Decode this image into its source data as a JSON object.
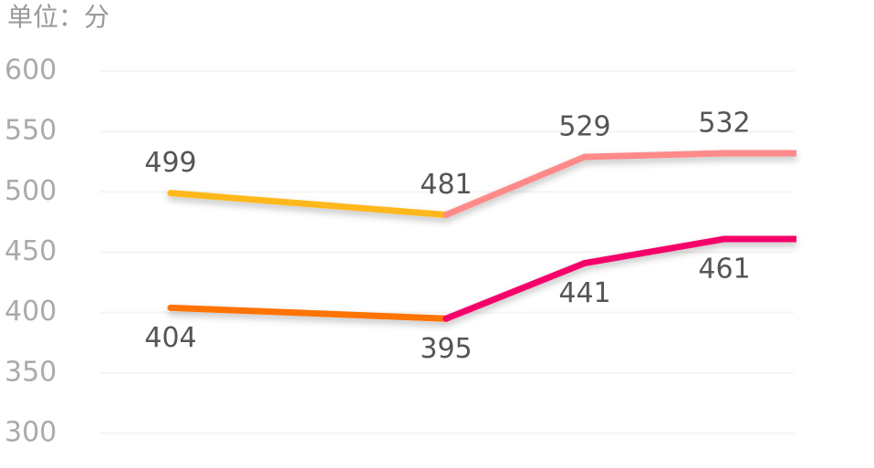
{
  "chart_data": {
    "type": "line",
    "unit_label": "单位：分",
    "categories": [
      null,
      null,
      null,
      null
    ],
    "series": [
      {
        "values": [
          499,
          481,
          529,
          532
        ],
        "segment_colors": [
          "#ffb81c",
          "#ff8a8a",
          "#ff8a8a"
        ],
        "label_position": "above"
      },
      {
        "values": [
          404,
          395,
          441,
          461
        ],
        "segment_colors": [
          "#ff7300",
          "#f5006a",
          "#f5006a"
        ],
        "label_position": "below"
      }
    ],
    "ylim": [
      300,
      600
    ],
    "yticks": [
      300,
      350,
      400,
      450,
      500,
      550,
      600
    ],
    "grid": true
  }
}
